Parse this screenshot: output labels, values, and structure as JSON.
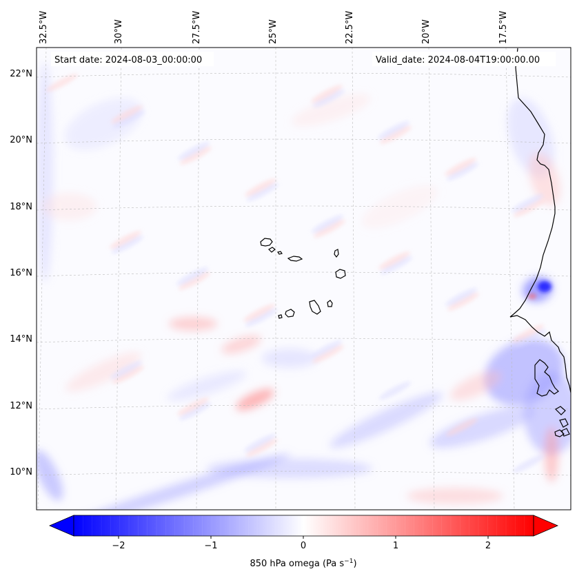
{
  "header": {
    "start_date": "Start date: 2024-08-03_00:00:00",
    "valid_date": "Valid_date: 2024-08-04T19:00:00.00"
  },
  "map": {
    "lon_labels": [
      "32.5°W",
      "30°W",
      "27.5°W",
      "25°W",
      "22.5°W",
      "20°W",
      "17.5°W"
    ],
    "lat_labels": [
      "22°N",
      "20°N",
      "18°N",
      "16°N",
      "14°N",
      "12°N",
      "10°N"
    ],
    "colors": {
      "negative": "#0000ff",
      "zero": "#ffffff",
      "positive": "#ff0000",
      "coast": "#000000",
      "grid": "#bbbbbb"
    }
  },
  "colorbar": {
    "tick_labels": [
      "−2",
      "−1",
      "0",
      "1",
      "2"
    ],
    "label_main": "850 hPa omega (Pa s",
    "label_exp": "−1",
    "label_close": ")",
    "vmin": -2.6,
    "vmax": 2.6
  }
}
